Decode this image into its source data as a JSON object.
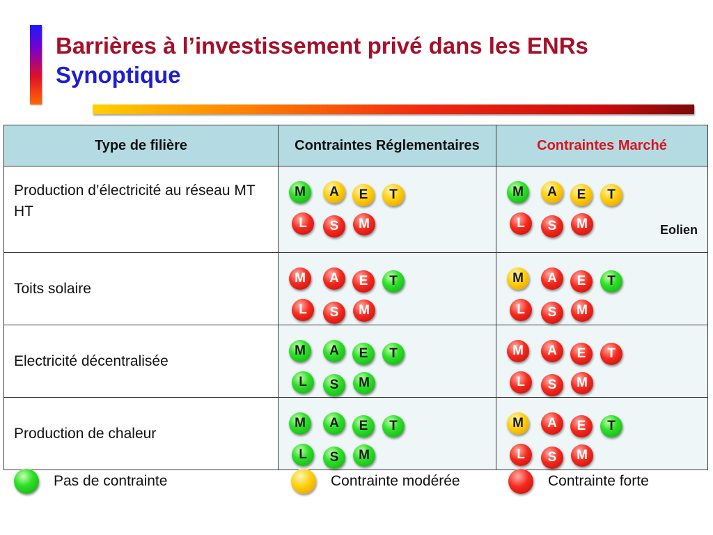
{
  "header": {
    "title": "Barrières à l’investissement privé dans les ENRs",
    "subtitle": "Synoptique"
  },
  "table": {
    "columns": [
      "Type de filière",
      "Contraintes Réglementaires",
      "Contraintes Marché"
    ],
    "rows": [
      {
        "type": "Production d’électricité au réseau MT HT",
        "reg": [
          {
            "letter": "M",
            "level": "none"
          },
          {
            "letter": "A",
            "level": "moderate"
          },
          {
            "letter": "E",
            "level": "moderate"
          },
          {
            "letter": "T",
            "level": "moderate"
          },
          {
            "letter": "L",
            "level": "strong"
          },
          {
            "letter": "S",
            "level": "strong"
          },
          {
            "letter": "M",
            "level": "strong"
          }
        ],
        "market": [
          {
            "letter": "M",
            "level": "none"
          },
          {
            "letter": "A",
            "level": "moderate"
          },
          {
            "letter": "E",
            "level": "moderate"
          },
          {
            "letter": "T",
            "level": "moderate"
          },
          {
            "letter": "L",
            "level": "strong"
          },
          {
            "letter": "S",
            "level": "strong"
          },
          {
            "letter": "M",
            "level": "strong"
          }
        ],
        "market_note": "Eolien"
      },
      {
        "type": "Toits solaire",
        "reg": [
          {
            "letter": "M",
            "level": "strong"
          },
          {
            "letter": "A",
            "level": "strong"
          },
          {
            "letter": "E",
            "level": "strong"
          },
          {
            "letter": "T",
            "level": "none"
          },
          {
            "letter": "L",
            "level": "strong"
          },
          {
            "letter": "S",
            "level": "strong"
          },
          {
            "letter": "M",
            "level": "strong"
          }
        ],
        "market": [
          {
            "letter": "M",
            "level": "moderate"
          },
          {
            "letter": "A",
            "level": "strong"
          },
          {
            "letter": "E",
            "level": "strong"
          },
          {
            "letter": "T",
            "level": "none"
          },
          {
            "letter": "L",
            "level": "strong"
          },
          {
            "letter": "S",
            "level": "strong"
          },
          {
            "letter": "M",
            "level": "strong"
          }
        ]
      },
      {
        "type": "Electricité décentralisée",
        "reg": [
          {
            "letter": "M",
            "level": "none"
          },
          {
            "letter": "A",
            "level": "none"
          },
          {
            "letter": "E",
            "level": "none"
          },
          {
            "letter": "T",
            "level": "none"
          },
          {
            "letter": "L",
            "level": "none"
          },
          {
            "letter": "S",
            "level": "none"
          },
          {
            "letter": "M",
            "level": "none"
          }
        ],
        "market": [
          {
            "letter": "M",
            "level": "strong"
          },
          {
            "letter": "A",
            "level": "strong"
          },
          {
            "letter": "E",
            "level": "strong"
          },
          {
            "letter": "T",
            "level": "strong"
          },
          {
            "letter": "L",
            "level": "strong"
          },
          {
            "letter": "S",
            "level": "strong"
          },
          {
            "letter": "M",
            "level": "strong"
          }
        ]
      },
      {
        "type": "Production de chaleur",
        "reg": [
          {
            "letter": "M",
            "level": "none"
          },
          {
            "letter": "A",
            "level": "none"
          },
          {
            "letter": "E",
            "level": "none"
          },
          {
            "letter": "T",
            "level": "none"
          },
          {
            "letter": "L",
            "level": "none"
          },
          {
            "letter": "S",
            "level": "none"
          },
          {
            "letter": "M",
            "level": "none"
          }
        ],
        "market": [
          {
            "letter": "M",
            "level": "moderate"
          },
          {
            "letter": "A",
            "level": "strong"
          },
          {
            "letter": "E",
            "level": "strong"
          },
          {
            "letter": "T",
            "level": "none"
          },
          {
            "letter": "L",
            "level": "strong"
          },
          {
            "letter": "S",
            "level": "strong"
          },
          {
            "letter": "M",
            "level": "strong"
          }
        ]
      }
    ]
  },
  "legend": [
    {
      "level": "none",
      "label": "Pas de contrainte"
    },
    {
      "level": "moderate",
      "label": "Contrainte modérée"
    },
    {
      "level": "strong",
      "label": "Contrainte forte"
    }
  ],
  "colors": {
    "none": "#2fe02a",
    "moderate": "#ffce0a",
    "strong": "#f52a1e",
    "title": "#a5102a",
    "subtitle": "#1e1ed2",
    "header_bg": "#b5dbe2",
    "marche_header": "#d8141e"
  }
}
